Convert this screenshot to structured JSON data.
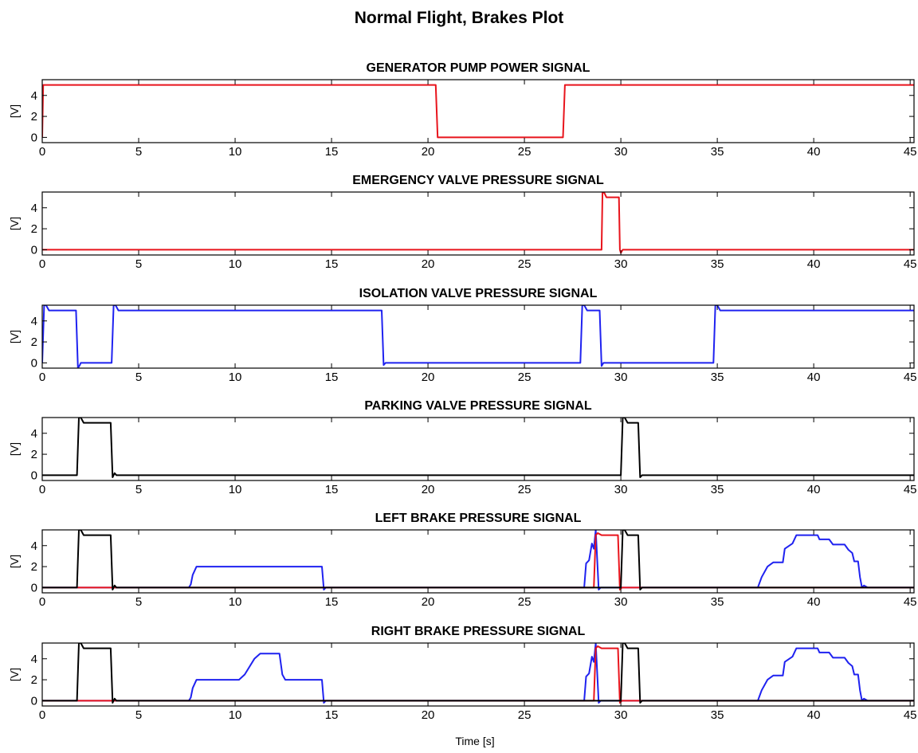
{
  "figure": {
    "title": "Normal Flight, Brakes Plot",
    "xlabel": "Time [s]"
  },
  "colors": {
    "red": "#e8141c",
    "blue": "#1f22f0",
    "black": "#000000"
  },
  "chart_data": [
    {
      "type": "line",
      "title": "GENERATOR PUMP POWER SIGNAL",
      "xlabel": "",
      "ylabel": "[V]",
      "xlim": [
        0,
        45.2
      ],
      "ylim": [
        -0.5,
        5.5
      ],
      "xticks": [
        0,
        5,
        10,
        15,
        20,
        25,
        30,
        35,
        40,
        45
      ],
      "yticks": [
        0,
        2,
        4
      ],
      "series": [
        {
          "color": "red",
          "points": [
            [
              0,
              0
            ],
            [
              0.05,
              5
            ],
            [
              20.4,
              5
            ],
            [
              20.5,
              0
            ],
            [
              27.0,
              0
            ],
            [
              27.1,
              5
            ],
            [
              45.2,
              5
            ]
          ]
        }
      ]
    },
    {
      "type": "line",
      "title": "EMERGENCY VALVE PRESSURE SIGNAL",
      "xlabel": "",
      "ylabel": "[V]",
      "xlim": [
        0,
        45.2
      ],
      "ylim": [
        -0.5,
        5.5
      ],
      "xticks": [
        0,
        5,
        10,
        15,
        20,
        25,
        30,
        35,
        40,
        45
      ],
      "yticks": [
        0,
        2,
        4
      ],
      "series": [
        {
          "color": "red",
          "points": [
            [
              0,
              0
            ],
            [
              29.0,
              0
            ],
            [
              29.05,
              5.5
            ],
            [
              29.15,
              5.4
            ],
            [
              29.25,
              5.0
            ],
            [
              29.9,
              5.0
            ],
            [
              29.95,
              0
            ],
            [
              30.0,
              -0.3
            ],
            [
              30.1,
              0
            ],
            [
              45.2,
              0
            ]
          ]
        }
      ]
    },
    {
      "type": "line",
      "title": "ISOLATION VALVE PRESSURE SIGNAL",
      "xlabel": "",
      "ylabel": "[V]",
      "xlim": [
        0,
        45.2
      ],
      "ylim": [
        -0.5,
        5.5
      ],
      "xticks": [
        0,
        5,
        10,
        15,
        20,
        25,
        30,
        35,
        40,
        45
      ],
      "yticks": [
        0,
        2,
        4
      ],
      "series": [
        {
          "color": "blue",
          "points": [
            [
              0,
              0
            ],
            [
              0.1,
              5.5
            ],
            [
              0.2,
              5.5
            ],
            [
              0.35,
              5.0
            ],
            [
              1.75,
              5.0
            ],
            [
              1.85,
              -0.5
            ],
            [
              1.95,
              -0.2
            ],
            [
              2.0,
              0
            ],
            [
              3.6,
              0
            ],
            [
              3.7,
              5.5
            ],
            [
              3.8,
              5.5
            ],
            [
              3.95,
              5.0
            ],
            [
              17.6,
              5.0
            ],
            [
              17.7,
              -0.2
            ],
            [
              17.8,
              0
            ],
            [
              27.9,
              0
            ],
            [
              28.0,
              5.5
            ],
            [
              28.1,
              5.5
            ],
            [
              28.25,
              5.0
            ],
            [
              28.9,
              5.0
            ],
            [
              29.0,
              -0.3
            ],
            [
              29.1,
              0
            ],
            [
              34.8,
              0
            ],
            [
              34.9,
              5.5
            ],
            [
              35.0,
              5.5
            ],
            [
              35.15,
              5.0
            ],
            [
              45.2,
              5.0
            ]
          ]
        }
      ]
    },
    {
      "type": "line",
      "title": "PARKING VALVE PRESSURE SIGNAL",
      "xlabel": "",
      "ylabel": "[V]",
      "xlim": [
        0,
        45.2
      ],
      "ylim": [
        -0.5,
        5.5
      ],
      "xticks": [
        0,
        5,
        10,
        15,
        20,
        25,
        30,
        35,
        40,
        45
      ],
      "yticks": [
        0,
        2,
        4
      ],
      "series": [
        {
          "color": "black",
          "points": [
            [
              0,
              0
            ],
            [
              1.8,
              0
            ],
            [
              1.9,
              5.5
            ],
            [
              2.0,
              5.5
            ],
            [
              2.15,
              5.0
            ],
            [
              3.55,
              5.0
            ],
            [
              3.65,
              -0.2
            ],
            [
              3.75,
              0.2
            ],
            [
              3.85,
              0
            ],
            [
              30.0,
              0
            ],
            [
              30.1,
              5.5
            ],
            [
              30.2,
              5.5
            ],
            [
              30.35,
              5.0
            ],
            [
              30.9,
              5.0
            ],
            [
              31.0,
              -0.2
            ],
            [
              31.1,
              0
            ],
            [
              45.2,
              0
            ]
          ]
        }
      ]
    },
    {
      "type": "line",
      "title": "LEFT BRAKE PRESSURE SIGNAL",
      "xlabel": "",
      "ylabel": "[V]",
      "xlim": [
        0,
        45.2
      ],
      "ylim": [
        -0.5,
        5.5
      ],
      "xticks": [
        0,
        5,
        10,
        15,
        20,
        25,
        30,
        35,
        40,
        45
      ],
      "yticks": [
        0,
        2,
        4
      ],
      "series": [
        {
          "color": "blue",
          "points": [
            [
              0,
              0
            ],
            [
              7.6,
              0
            ],
            [
              7.7,
              0.3
            ],
            [
              7.8,
              1.2
            ],
            [
              8.0,
              2.0
            ],
            [
              14.5,
              2.0
            ],
            [
              14.6,
              -0.2
            ],
            [
              14.7,
              0
            ],
            [
              28.1,
              0
            ],
            [
              28.2,
              2.3
            ],
            [
              28.35,
              2.6
            ],
            [
              28.5,
              4.2
            ],
            [
              28.6,
              3.7
            ],
            [
              28.7,
              5.5
            ],
            [
              28.85,
              -0.2
            ],
            [
              28.95,
              0
            ],
            [
              37.1,
              0
            ],
            [
              37.3,
              1.0
            ],
            [
              37.6,
              2.0
            ],
            [
              37.9,
              2.4
            ],
            [
              38.4,
              2.4
            ],
            [
              38.5,
              3.7
            ],
            [
              38.9,
              4.2
            ],
            [
              39.1,
              5.0
            ],
            [
              40.2,
              5.0
            ],
            [
              40.3,
              4.6
            ],
            [
              40.8,
              4.6
            ],
            [
              41.0,
              4.1
            ],
            [
              41.6,
              4.1
            ],
            [
              41.8,
              3.6
            ],
            [
              42.0,
              3.3
            ],
            [
              42.1,
              2.5
            ],
            [
              42.3,
              2.5
            ],
            [
              42.4,
              1.0
            ],
            [
              42.5,
              0
            ],
            [
              42.6,
              0.2
            ],
            [
              42.8,
              0
            ],
            [
              45.2,
              0
            ]
          ]
        },
        {
          "color": "red",
          "points": [
            [
              0,
              0
            ],
            [
              28.6,
              0
            ],
            [
              28.7,
              5.0
            ],
            [
              28.8,
              5.2
            ],
            [
              29.0,
              5.0
            ],
            [
              29.85,
              5.0
            ],
            [
              29.95,
              -0.2
            ],
            [
              30.05,
              0
            ],
            [
              45.2,
              0
            ]
          ]
        },
        {
          "color": "black",
          "points": [
            [
              0,
              0
            ],
            [
              1.8,
              0
            ],
            [
              1.9,
              5.5
            ],
            [
              2.0,
              5.5
            ],
            [
              2.15,
              5.0
            ],
            [
              3.55,
              5.0
            ],
            [
              3.65,
              -0.2
            ],
            [
              3.75,
              0.2
            ],
            [
              3.85,
              0
            ],
            [
              30.0,
              0
            ],
            [
              30.1,
              5.5
            ],
            [
              30.2,
              5.5
            ],
            [
              30.35,
              5.0
            ],
            [
              30.9,
              5.0
            ],
            [
              31.0,
              -0.2
            ],
            [
              31.1,
              0
            ],
            [
              45.2,
              0
            ]
          ]
        }
      ]
    },
    {
      "type": "line",
      "title": "RIGHT BRAKE PRESSURE SIGNAL",
      "xlabel": "Time [s]",
      "ylabel": "[V]",
      "xlim": [
        0,
        45.2
      ],
      "ylim": [
        -0.5,
        5.5
      ],
      "xticks": [
        0,
        5,
        10,
        15,
        20,
        25,
        30,
        35,
        40,
        45
      ],
      "yticks": [
        0,
        2,
        4
      ],
      "series": [
        {
          "color": "blue",
          "points": [
            [
              0,
              0
            ],
            [
              7.6,
              0
            ],
            [
              7.7,
              0.3
            ],
            [
              7.8,
              1.2
            ],
            [
              8.0,
              2.0
            ],
            [
              10.2,
              2.0
            ],
            [
              10.5,
              2.5
            ],
            [
              11.0,
              4.0
            ],
            [
              11.3,
              4.5
            ],
            [
              12.3,
              4.5
            ],
            [
              12.45,
              2.5
            ],
            [
              12.6,
              2.0
            ],
            [
              14.5,
              2.0
            ],
            [
              14.6,
              -0.2
            ],
            [
              14.7,
              0
            ],
            [
              28.1,
              0
            ],
            [
              28.2,
              2.3
            ],
            [
              28.35,
              2.6
            ],
            [
              28.5,
              4.2
            ],
            [
              28.6,
              3.7
            ],
            [
              28.7,
              5.5
            ],
            [
              28.85,
              -0.2
            ],
            [
              28.95,
              0
            ],
            [
              37.1,
              0
            ],
            [
              37.3,
              1.0
            ],
            [
              37.6,
              2.0
            ],
            [
              37.9,
              2.4
            ],
            [
              38.4,
              2.4
            ],
            [
              38.5,
              3.7
            ],
            [
              38.9,
              4.2
            ],
            [
              39.1,
              5.0
            ],
            [
              40.2,
              5.0
            ],
            [
              40.3,
              4.6
            ],
            [
              40.8,
              4.6
            ],
            [
              41.0,
              4.1
            ],
            [
              41.6,
              4.1
            ],
            [
              41.8,
              3.6
            ],
            [
              42.0,
              3.3
            ],
            [
              42.1,
              2.5
            ],
            [
              42.3,
              2.5
            ],
            [
              42.4,
              1.0
            ],
            [
              42.5,
              0
            ],
            [
              42.6,
              0.2
            ],
            [
              42.8,
              0
            ],
            [
              45.2,
              0
            ]
          ]
        },
        {
          "color": "red",
          "points": [
            [
              0,
              0
            ],
            [
              28.6,
              0
            ],
            [
              28.7,
              5.0
            ],
            [
              28.8,
              5.2
            ],
            [
              29.0,
              5.0
            ],
            [
              29.85,
              5.0
            ],
            [
              29.95,
              -0.2
            ],
            [
              30.05,
              0
            ],
            [
              45.2,
              0
            ]
          ]
        },
        {
          "color": "black",
          "points": [
            [
              0,
              0
            ],
            [
              1.8,
              0
            ],
            [
              1.9,
              5.5
            ],
            [
              2.0,
              5.5
            ],
            [
              2.15,
              5.0
            ],
            [
              3.55,
              5.0
            ],
            [
              3.65,
              -0.2
            ],
            [
              3.75,
              0.2
            ],
            [
              3.85,
              0
            ],
            [
              30.0,
              0
            ],
            [
              30.1,
              5.5
            ],
            [
              30.2,
              5.5
            ],
            [
              30.35,
              5.0
            ],
            [
              30.9,
              5.0
            ],
            [
              31.0,
              -0.2
            ],
            [
              31.1,
              0
            ],
            [
              45.2,
              0
            ]
          ]
        }
      ]
    }
  ]
}
